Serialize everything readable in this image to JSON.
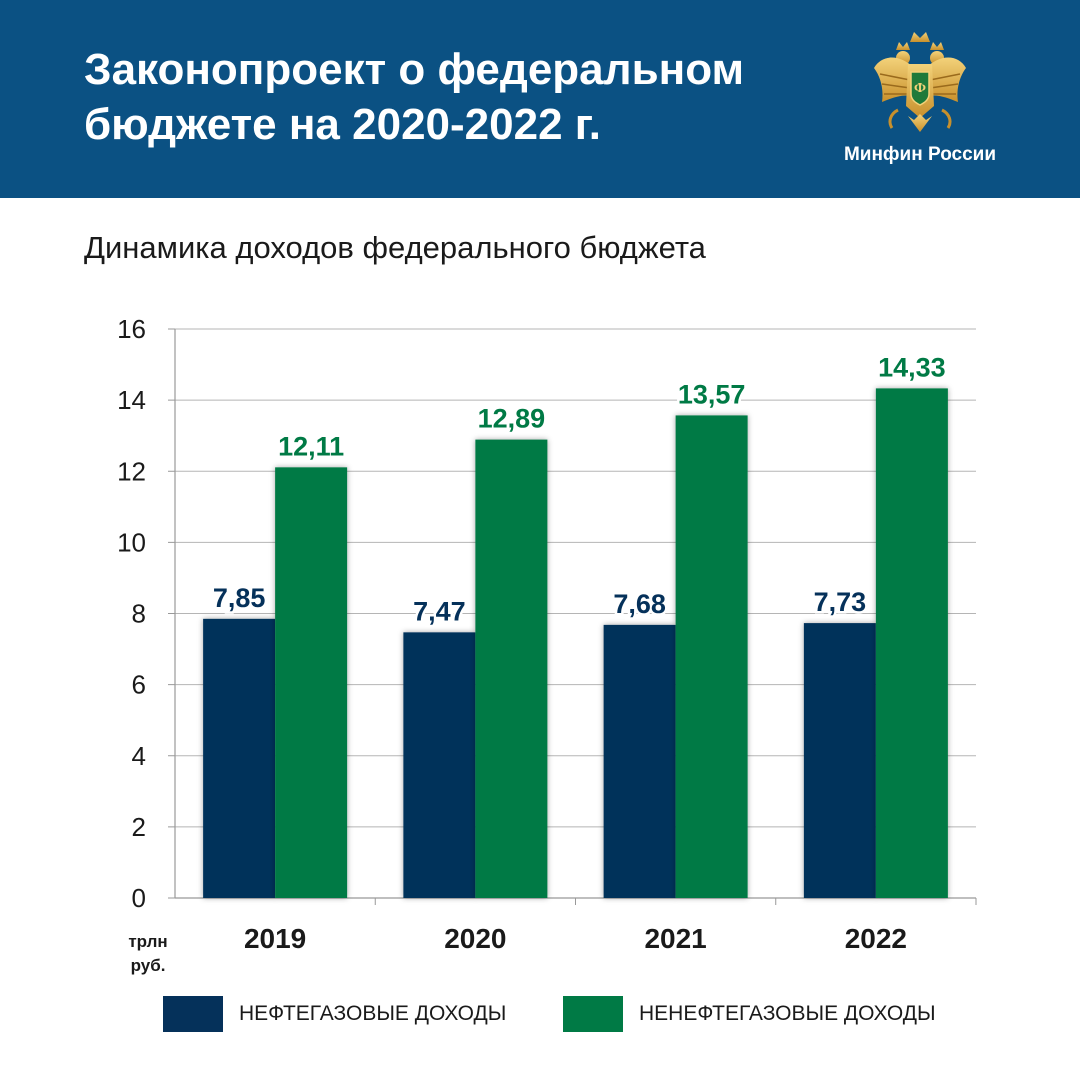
{
  "header": {
    "title_line1": "Законопроект о федеральном",
    "title_line2": "бюджете на 2020-2022 г.",
    "ministry": "Минфин России",
    "emblem_icon": "russian-coat-of-arms-icon",
    "background_color": "#0b5183"
  },
  "chart_data": {
    "type": "bar",
    "title": "Динамика доходов федерального бюджета",
    "categories": [
      "2019",
      "2020",
      "2021",
      "2022"
    ],
    "unit_line1": "трлн",
    "unit_line2": "руб.",
    "ylim": [
      0,
      16
    ],
    "yticks": [
      0,
      2,
      4,
      6,
      8,
      10,
      12,
      14,
      16
    ],
    "grid": true,
    "legend_position": "bottom",
    "series": [
      {
        "name": "НЕФТЕГАЗОВЫЕ ДОХОДЫ",
        "color": "#05315a",
        "values": [
          7.85,
          7.47,
          7.68,
          7.73
        ],
        "labels": [
          "7,85",
          "7,47",
          "7,68",
          "7,73"
        ]
      },
      {
        "name": "НЕНЕФТЕГАЗОВЫЕ ДОХОДЫ",
        "color": "#007a45",
        "values": [
          12.11,
          12.89,
          13.57,
          14.33
        ],
        "labels": [
          "12,11",
          "12,89",
          "13,57",
          "14,33"
        ]
      }
    ]
  }
}
